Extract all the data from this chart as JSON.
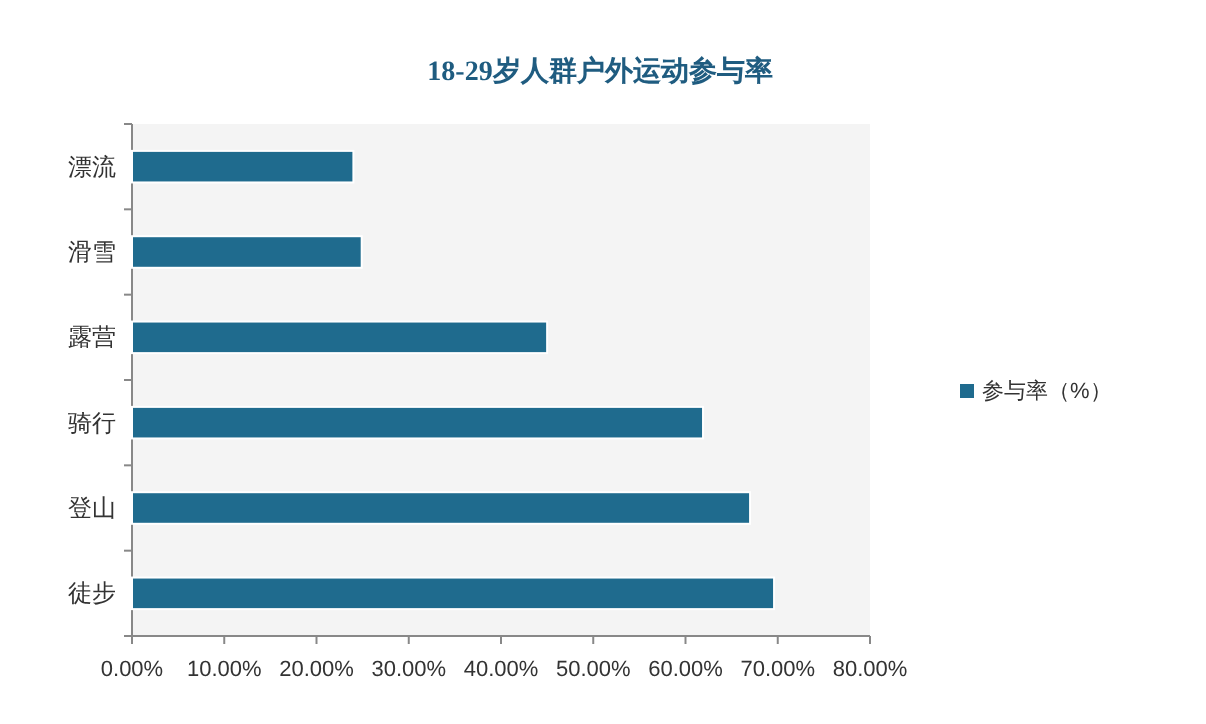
{
  "chart_data": {
    "type": "bar",
    "orientation": "horizontal",
    "title": "18-29岁人群户外运动参与率",
    "categories": [
      "漂流",
      "滑雪",
      "露营",
      "骑行",
      "登山",
      "徒步"
    ],
    "series": [
      {
        "name": "参与率（%）",
        "color": "#1f6b8e",
        "values": [
          24.0,
          24.9,
          45.0,
          61.9,
          67.0,
          69.6
        ]
      }
    ],
    "xlim": [
      0,
      80
    ],
    "xticks": [
      {
        "value": 0,
        "label": "0.00%"
      },
      {
        "value": 10,
        "label": "10.00%"
      },
      {
        "value": 20,
        "label": "20.00%"
      },
      {
        "value": 30,
        "label": "30.00%"
      },
      {
        "value": 40,
        "label": "40.00%"
      },
      {
        "value": 50,
        "label": "50.00%"
      },
      {
        "value": 60,
        "label": "60.00%"
      },
      {
        "value": 70,
        "label": "70.00%"
      },
      {
        "value": 80,
        "label": "80.00%"
      }
    ],
    "grid": false,
    "legend": "right"
  }
}
